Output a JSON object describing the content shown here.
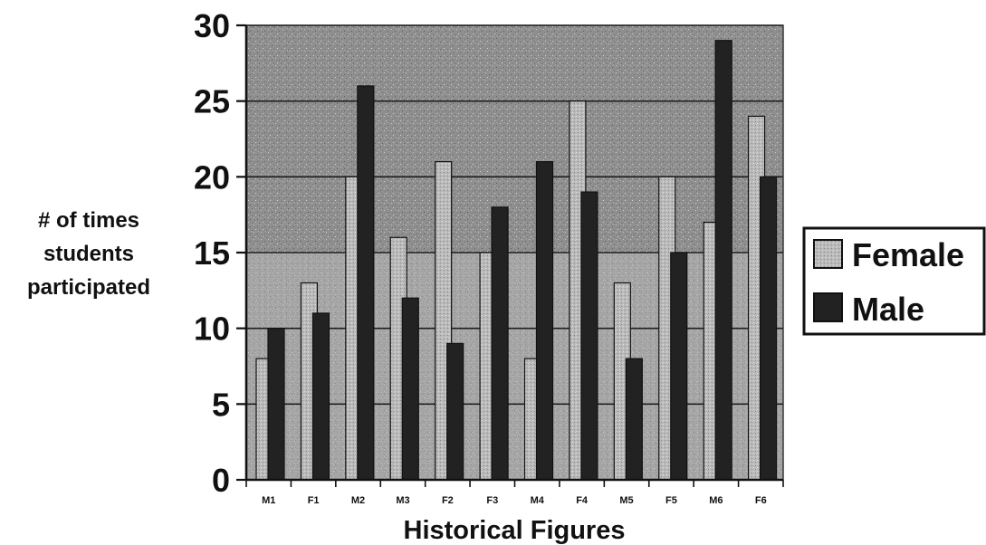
{
  "chart_data": {
    "type": "bar",
    "xlabel": "Historical Figures",
    "ylabel_lines": [
      "# of times",
      "students",
      "participated"
    ],
    "categories": [
      "M1",
      "F1",
      "M2",
      "M3",
      "F2",
      "F3",
      "M4",
      "F4",
      "M5",
      "F5",
      "M6",
      "F6"
    ],
    "yticks": [
      "0",
      "5",
      "10",
      "15",
      "20",
      "25",
      "30"
    ],
    "ylim": [
      0,
      30
    ],
    "grid": true,
    "legend": "right",
    "series": [
      {
        "name": "Female",
        "color": "#b8b8b8",
        "values": [
          8,
          13,
          20,
          16,
          21,
          15,
          8,
          25,
          13,
          20,
          17,
          24
        ]
      },
      {
        "name": "Male",
        "color": "#222222",
        "values": [
          10,
          11,
          26,
          12,
          9,
          18,
          21,
          19,
          8,
          15,
          29,
          20
        ]
      }
    ]
  }
}
